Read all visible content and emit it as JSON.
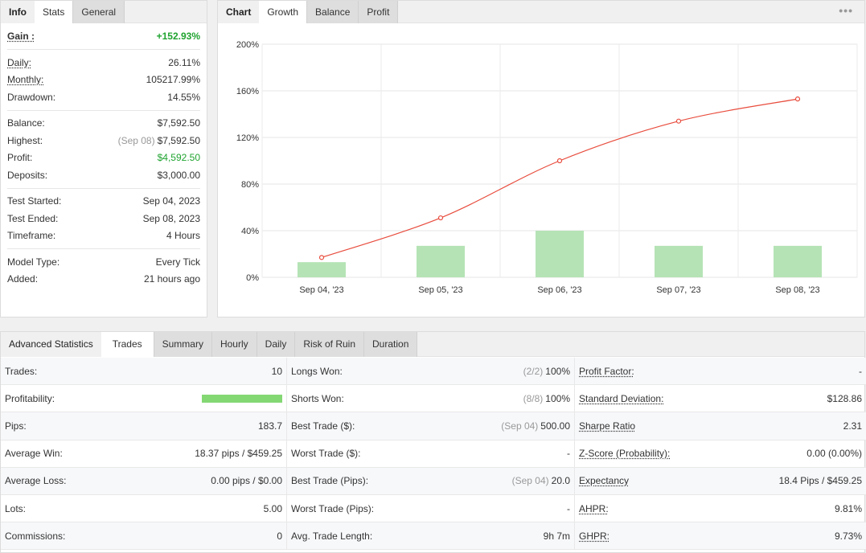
{
  "info_panel": {
    "tabs": [
      "Info",
      "Stats",
      "General"
    ],
    "gain": {
      "label": "Gain :",
      "value": "+152.93%"
    },
    "group1": [
      {
        "label": "Daily:",
        "value": "26.11%"
      },
      {
        "label": "Monthly:",
        "value": "105217.99%"
      },
      {
        "label": "Drawdown:",
        "value": "14.55%"
      }
    ],
    "group2": [
      {
        "label": "Balance:",
        "value": "$7,592.50"
      },
      {
        "label": "Highest:",
        "note": "(Sep 08)",
        "value": "$7,592.50"
      },
      {
        "label": "Profit:",
        "value": "$4,592.50"
      },
      {
        "label": "Deposits:",
        "value": "$3,000.00"
      }
    ],
    "group3": [
      {
        "label": "Test Started:",
        "value": "Sep 04, 2023"
      },
      {
        "label": "Test Ended:",
        "value": "Sep 08, 2023"
      },
      {
        "label": "Timeframe:",
        "value": "4 Hours"
      }
    ],
    "group4": [
      {
        "label": "Model Type:",
        "value": "Every Tick"
      },
      {
        "label": "Added:",
        "value": "21 hours ago"
      }
    ]
  },
  "chart_panel": {
    "tabs": [
      "Chart",
      "Growth",
      "Balance",
      "Profit"
    ],
    "menu_icon": "more-dots-icon"
  },
  "chart_data": {
    "type": "bar+line",
    "categories": [
      "Sep 04, '23",
      "Sep 05, '23",
      "Sep 06, '23",
      "Sep 07, '23",
      "Sep 08, '23"
    ],
    "bar_values": [
      13,
      27,
      40,
      27,
      27
    ],
    "line_values": [
      17,
      51,
      100,
      134,
      153
    ],
    "yticks": [
      "0%",
      "40%",
      "80%",
      "120%",
      "160%",
      "200%"
    ],
    "ylim": [
      0,
      200
    ],
    "grid": true,
    "colors": {
      "bar": "#b5e3b5",
      "line": "#e84c3d"
    }
  },
  "advanced": {
    "tabs": [
      "Advanced Statistics",
      "Trades",
      "Summary",
      "Hourly",
      "Daily",
      "Risk of Ruin",
      "Duration"
    ],
    "rows": [
      [
        {
          "label": "Trades:",
          "value": "10"
        },
        {
          "label": "Longs Won:",
          "note": "(2/2)",
          "value": "100%"
        },
        {
          "label": "Profit Factor:",
          "value": "-"
        }
      ],
      [
        {
          "label": "Profitability:",
          "progress": 1.0
        },
        {
          "label": "Shorts Won:",
          "note": "(8/8)",
          "value": "100%"
        },
        {
          "label": "Standard Deviation:",
          "value": "$128.86"
        }
      ],
      [
        {
          "label": "Pips:",
          "value": "183.7"
        },
        {
          "label": "Best Trade ($):",
          "note": "(Sep 04)",
          "value": "500.00"
        },
        {
          "label": "Sharpe Ratio",
          "value": "2.31"
        }
      ],
      [
        {
          "label": "Average Win:",
          "value": "18.37 pips / $459.25"
        },
        {
          "label": "Worst Trade ($):",
          "value": "-"
        },
        {
          "label": "Z-Score (Probability):",
          "value": "0.00 (0.00%)"
        }
      ],
      [
        {
          "label": "Average Loss:",
          "value": "0.00 pips / $0.00"
        },
        {
          "label": "Best Trade (Pips):",
          "note": "(Sep 04)",
          "value": "20.0"
        },
        {
          "label": "Expectancy",
          "value": "18.4 Pips / $459.25"
        }
      ],
      [
        {
          "label": "Lots:",
          "value": "5.00"
        },
        {
          "label": "Worst Trade (Pips):",
          "value": "-"
        },
        {
          "label": "AHPR:",
          "value": "9.81%"
        }
      ],
      [
        {
          "label": "Commissions:",
          "value": "0"
        },
        {
          "label": "Avg. Trade Length:",
          "value": "9h 7m"
        },
        {
          "label": "GHPR:",
          "value": "9.73%"
        }
      ]
    ]
  }
}
